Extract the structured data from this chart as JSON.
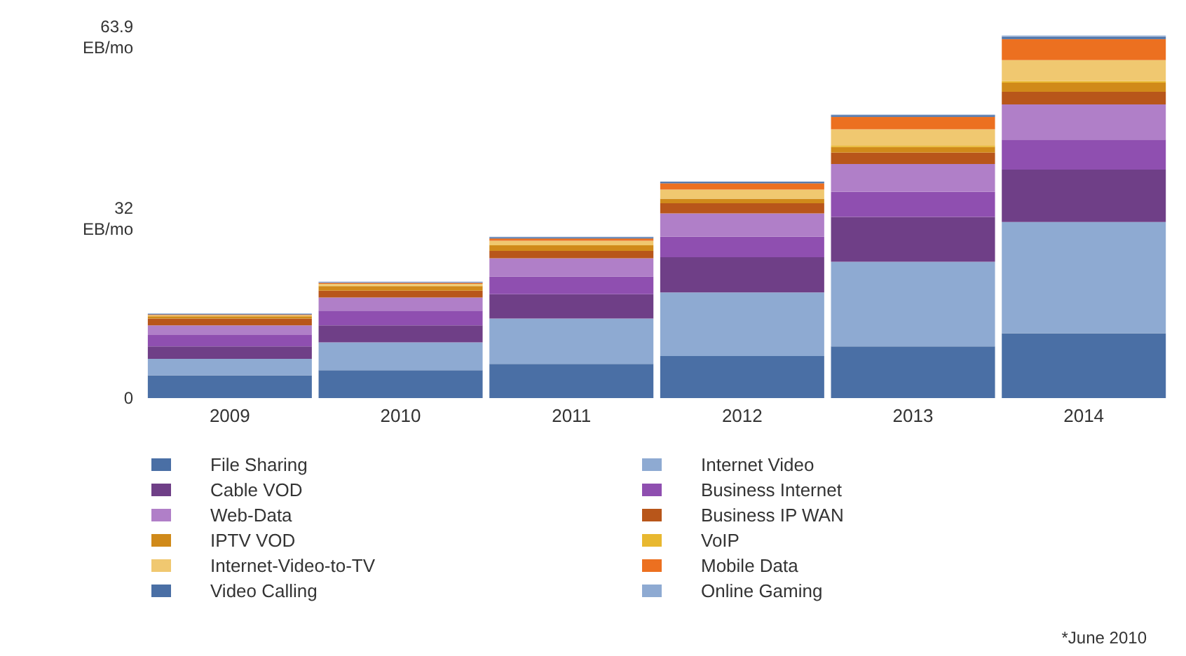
{
  "chart_data": {
    "type": "bar",
    "stacked": true,
    "categories": [
      "2009",
      "2010",
      "2011",
      "2012",
      "2013",
      "2014"
    ],
    "ylim": [
      0,
      63.9
    ],
    "yticks": [
      0,
      {
        "value": 32,
        "label": "32 EB/mo"
      },
      {
        "value": 63.9,
        "label": "63.9 EB/mo"
      }
    ],
    "grid": false,
    "legend": "bottom",
    "series": [
      {
        "name": "File Sharing",
        "color": "#4a6fa5",
        "values": [
          4.0,
          4.9,
          6.0,
          7.4,
          9.1,
          11.4
        ]
      },
      {
        "name": "Internet Video",
        "color": "#8eaad2",
        "values": [
          2.9,
          4.9,
          8.0,
          11.2,
          14.9,
          19.6
        ]
      },
      {
        "name": "Cable VOD",
        "color": "#6f3f87",
        "values": [
          2.2,
          3.0,
          4.3,
          6.2,
          7.9,
          9.2
        ]
      },
      {
        "name": "Business Internet",
        "color": "#8f4fb0",
        "values": [
          2.0,
          2.6,
          3.1,
          3.6,
          4.4,
          5.3
        ]
      },
      {
        "name": "Web-Data",
        "color": "#b07fc8",
        "values": [
          1.7,
          2.3,
          3.2,
          4.1,
          4.9,
          6.2
        ]
      },
      {
        "name": "Business IP WAN",
        "color": "#b8561a",
        "values": [
          1.2,
          1.2,
          1.3,
          1.8,
          2.0,
          2.2
        ]
      },
      {
        "name": "IPTV VOD",
        "color": "#d08a1a",
        "values": [
          0.4,
          0.8,
          1.0,
          0.8,
          1.0,
          1.6
        ]
      },
      {
        "name": "VoIP",
        "color": "#e8b830",
        "values": [
          0.1,
          0.1,
          0.1,
          null,
          0.2,
          0.3
        ]
      },
      {
        "name": "Internet-Video-to-TV",
        "color": "#f0c870",
        "values": [
          0.1,
          0.3,
          0.7,
          1.6,
          2.9,
          3.7
        ]
      },
      {
        "name": "Mobile Data",
        "color": "#ec7020",
        "values": [
          0.1,
          0.2,
          0.4,
          1.1,
          2.2,
          3.7
        ]
      },
      {
        "name": "Video Calling",
        "color": "#4a6fa5",
        "values": [
          0.1,
          0.1,
          0.2,
          0.3,
          0.3,
          0.4
        ]
      },
      {
        "name": "Online Gaming",
        "color": "#8eaad2",
        "values": [
          0.1,
          0.1,
          0.1,
          null,
          0.1,
          0.2
        ]
      }
    ],
    "annotations": [
      "*June 2010"
    ]
  }
}
